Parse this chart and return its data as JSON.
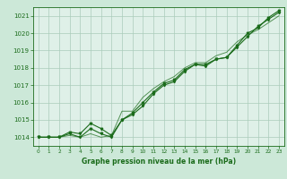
{
  "title": "Graphe pression niveau de la mer (hPa)",
  "background_color": "#cce8d8",
  "plot_bg_color": "#dff0e8",
  "grid_color": "#aaccbb",
  "line_color": "#1a6b1a",
  "xlim": [
    -0.5,
    23.5
  ],
  "ylim": [
    1013.5,
    1021.5
  ],
  "yticks": [
    1014,
    1015,
    1016,
    1017,
    1018,
    1019,
    1020,
    1021
  ],
  "xticks": [
    0,
    1,
    2,
    3,
    4,
    5,
    6,
    7,
    8,
    9,
    10,
    11,
    12,
    13,
    14,
    15,
    16,
    17,
    18,
    19,
    20,
    21,
    22,
    23
  ],
  "series1": [
    1014.0,
    1014.0,
    1014.0,
    1014.2,
    1014.0,
    1014.5,
    1014.2,
    1014.0,
    1015.0,
    1015.3,
    1015.8,
    1016.5,
    1017.0,
    1017.2,
    1017.8,
    1018.2,
    1018.1,
    1018.5,
    1018.6,
    1019.2,
    1019.8,
    1020.4,
    1020.8,
    1021.2
  ],
  "series2": [
    1014.0,
    1014.0,
    1014.0,
    1014.3,
    1014.2,
    1014.8,
    1014.5,
    1014.1,
    1015.0,
    1015.4,
    1016.0,
    1016.6,
    1017.1,
    1017.3,
    1017.9,
    1018.2,
    1018.2,
    1018.5,
    1018.6,
    1019.3,
    1020.0,
    1020.3,
    1020.9,
    1021.3
  ],
  "series3": [
    1014.0,
    1014.0,
    1014.0,
    1014.1,
    1014.0,
    1014.2,
    1014.0,
    1014.1,
    1015.5,
    1015.5,
    1016.3,
    1016.8,
    1017.2,
    1017.5,
    1018.0,
    1018.3,
    1018.3,
    1018.7,
    1018.9,
    1019.5,
    1019.9,
    1020.2,
    1020.6,
    1021.0
  ]
}
